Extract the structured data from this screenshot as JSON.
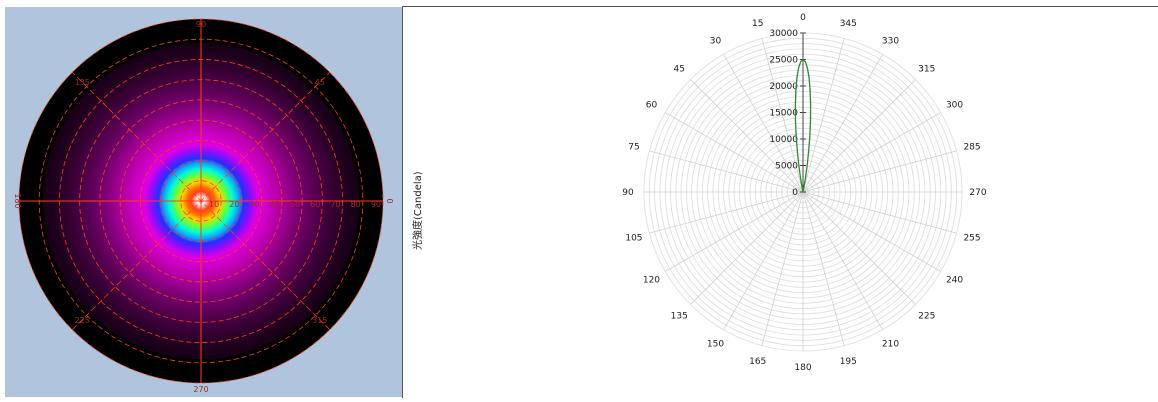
{
  "chart_data": [
    {
      "type": "heatmap",
      "subtype": "polar-intensity-map",
      "angle_labels": [
        "90",
        "135",
        "45",
        "180",
        "0",
        "225",
        "315",
        "270"
      ],
      "radial_labels": [
        "10",
        "20",
        "30",
        "40",
        "50",
        "60",
        "70",
        "80",
        "90"
      ],
      "radial_max": 90,
      "colors": {
        "background": "#b0c4de",
        "grid": "#ff3b1f",
        "label": "#a02828",
        "outer_ring": "#000000"
      }
    },
    {
      "type": "line",
      "subtype": "polar",
      "ylabel": "光強度(Candela)",
      "angle_labels": [
        "0",
        "15",
        "30",
        "45",
        "60",
        "75",
        "90",
        "105",
        "120",
        "135",
        "150",
        "165",
        "180",
        "195",
        "210",
        "225",
        "240",
        "255",
        "270",
        "285",
        "300",
        "315",
        "330",
        "345"
      ],
      "radial_ticks": [
        "0",
        "5000",
        "10000",
        "15000",
        "20000",
        "25000",
        "30000"
      ],
      "rlim": [
        0,
        30000
      ],
      "direction": "counterclockwise",
      "zero_at": "top",
      "grid": true,
      "series": [
        {
          "color": "#2e8b2e",
          "points": [
            [
              0,
              25000
            ],
            [
              1,
              24600
            ],
            [
              2,
              23500
            ],
            [
              3,
              21700
            ],
            [
              4,
              19300
            ],
            [
              5,
              16500
            ],
            [
              6,
              13500
            ],
            [
              7,
              10500
            ],
            [
              8,
              7500
            ],
            [
              9,
              4800
            ],
            [
              10,
              2500
            ],
            [
              11,
              900
            ],
            [
              12,
              0
            ],
            [
              348,
              0
            ],
            [
              349,
              900
            ],
            [
              350,
              2500
            ],
            [
              351,
              4800
            ],
            [
              352,
              7500
            ],
            [
              353,
              10500
            ],
            [
              354,
              13500
            ],
            [
              355,
              16500
            ],
            [
              356,
              19300
            ],
            [
              357,
              21700
            ],
            [
              358,
              23500
            ],
            [
              359,
              24600
            ]
          ]
        }
      ]
    }
  ]
}
